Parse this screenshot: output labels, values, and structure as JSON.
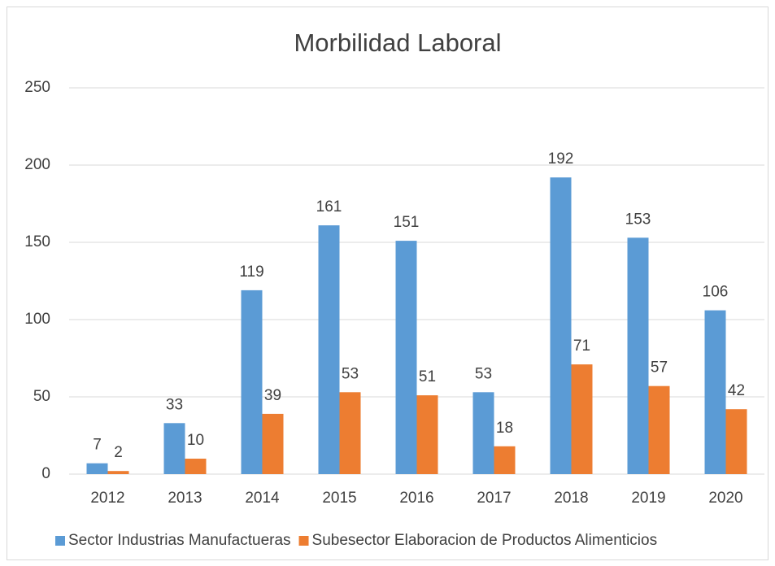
{
  "chart_data": {
    "type": "bar",
    "title": "Morbilidad Laboral",
    "categories": [
      "2012",
      "2013",
      "2014",
      "2015",
      "2016",
      "2017",
      "2018",
      "2019",
      "2020"
    ],
    "series": [
      {
        "name": "Sector Industrias Manufactueras",
        "color": "#5b9bd5",
        "values": [
          7,
          33,
          119,
          161,
          151,
          53,
          192,
          153,
          106
        ]
      },
      {
        "name": "Subesector Elaboracion de Productos Alimenticios",
        "color": "#ed7d31",
        "values": [
          2,
          10,
          39,
          53,
          51,
          18,
          71,
          57,
          42
        ]
      }
    ],
    "ylim": [
      0,
      250
    ],
    "yticks": [
      0,
      50,
      100,
      150,
      200,
      250
    ],
    "grid": true,
    "legend": "bottom",
    "data_labels": true
  }
}
